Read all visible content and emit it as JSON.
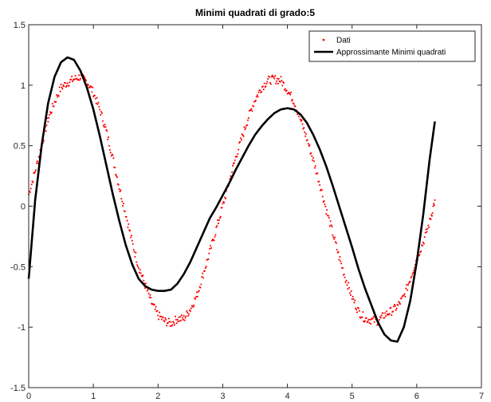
{
  "chart_data": {
    "type": "scatter+line",
    "title": "Minimi quadrati di grado:5",
    "xlabel": "",
    "ylabel": "",
    "xlim": [
      0,
      7
    ],
    "ylim": [
      -1.5,
      1.5
    ],
    "xticks": [
      0,
      1,
      2,
      3,
      4,
      5,
      6,
      7
    ],
    "yticks": [
      -1.5,
      -1,
      -0.5,
      0,
      0.5,
      1,
      1.5
    ],
    "x_tick_labels": [
      "0",
      "1",
      "2",
      "3",
      "4",
      "5",
      "6",
      "7"
    ],
    "y_tick_labels": [
      "-1.5",
      "-1",
      "-0.5",
      "0",
      "0.5",
      "1",
      "1.5"
    ],
    "grid": false,
    "legend_position": "top-right",
    "series": [
      {
        "name": "Dati",
        "kind": "scatter",
        "color": "#ff0000",
        "x": [
          0.0,
          0.1,
          0.2,
          0.3,
          0.4,
          0.5,
          0.6,
          0.7,
          0.8,
          0.9,
          1.0,
          1.1,
          1.2,
          1.3,
          1.4,
          1.5,
          1.6,
          1.7,
          1.8,
          1.9,
          2.0,
          2.1,
          2.2,
          2.3,
          2.4,
          2.5,
          2.6,
          2.7,
          2.8,
          2.9,
          3.0,
          3.1,
          3.2,
          3.3,
          3.4,
          3.5,
          3.6,
          3.7,
          3.8,
          3.9,
          4.0,
          4.1,
          4.2,
          4.3,
          4.4,
          4.5,
          4.6,
          4.7,
          4.8,
          4.9,
          5.0,
          5.1,
          5.2,
          5.3,
          5.4,
          5.5,
          5.6,
          5.7,
          5.8,
          5.9,
          6.0,
          6.1,
          6.2,
          6.28
        ],
        "y": [
          0.1,
          0.29,
          0.5,
          0.72,
          0.86,
          0.98,
          1.02,
          1.05,
          1.07,
          1.03,
          0.94,
          0.8,
          0.62,
          0.4,
          0.16,
          -0.06,
          -0.3,
          -0.5,
          -0.65,
          -0.8,
          -0.9,
          -0.95,
          -0.97,
          -0.93,
          -0.93,
          -0.85,
          -0.74,
          -0.56,
          -0.38,
          -0.19,
          0.0,
          0.2,
          0.4,
          0.57,
          0.74,
          0.88,
          0.98,
          1.04,
          1.05,
          1.04,
          0.96,
          0.87,
          0.72,
          0.56,
          0.38,
          0.19,
          -0.03,
          -0.22,
          -0.42,
          -0.6,
          -0.75,
          -0.87,
          -0.93,
          -0.94,
          -0.95,
          -0.9,
          -0.87,
          -0.83,
          -0.75,
          -0.6,
          -0.43,
          -0.3,
          -0.13,
          0.05
        ]
      },
      {
        "name": "Approssimante Minimi quadrati",
        "kind": "line",
        "color": "#000000",
        "x": [
          0.0,
          0.1,
          0.2,
          0.3,
          0.4,
          0.5,
          0.6,
          0.7,
          0.8,
          0.9,
          1.0,
          1.1,
          1.2,
          1.3,
          1.4,
          1.5,
          1.6,
          1.7,
          1.8,
          1.9,
          2.0,
          2.1,
          2.2,
          2.3,
          2.4,
          2.5,
          2.6,
          2.7,
          2.8,
          2.9,
          3.0,
          3.1,
          3.2,
          3.3,
          3.4,
          3.5,
          3.6,
          3.7,
          3.8,
          3.9,
          4.0,
          4.1,
          4.2,
          4.3,
          4.4,
          4.5,
          4.6,
          4.7,
          4.8,
          4.9,
          5.0,
          5.1,
          5.2,
          5.3,
          5.4,
          5.5,
          5.6,
          5.7,
          5.8,
          5.9,
          6.0,
          6.1,
          6.2,
          6.28
        ],
        "y": [
          -0.6,
          0.05,
          0.5,
          0.85,
          1.07,
          1.19,
          1.23,
          1.21,
          1.12,
          0.98,
          0.8,
          0.58,
          0.34,
          0.1,
          -0.12,
          -0.32,
          -0.48,
          -0.6,
          -0.66,
          -0.69,
          -0.7,
          -0.7,
          -0.69,
          -0.64,
          -0.56,
          -0.46,
          -0.34,
          -0.22,
          -0.1,
          -0.01,
          0.09,
          0.19,
          0.3,
          0.4,
          0.5,
          0.59,
          0.66,
          0.72,
          0.77,
          0.8,
          0.81,
          0.8,
          0.76,
          0.69,
          0.59,
          0.47,
          0.33,
          0.17,
          0.0,
          -0.17,
          -0.34,
          -0.52,
          -0.68,
          -0.82,
          -0.96,
          -1.06,
          -1.11,
          -1.12,
          -1.0,
          -0.78,
          -0.46,
          -0.07,
          0.39,
          0.7
        ]
      }
    ]
  }
}
